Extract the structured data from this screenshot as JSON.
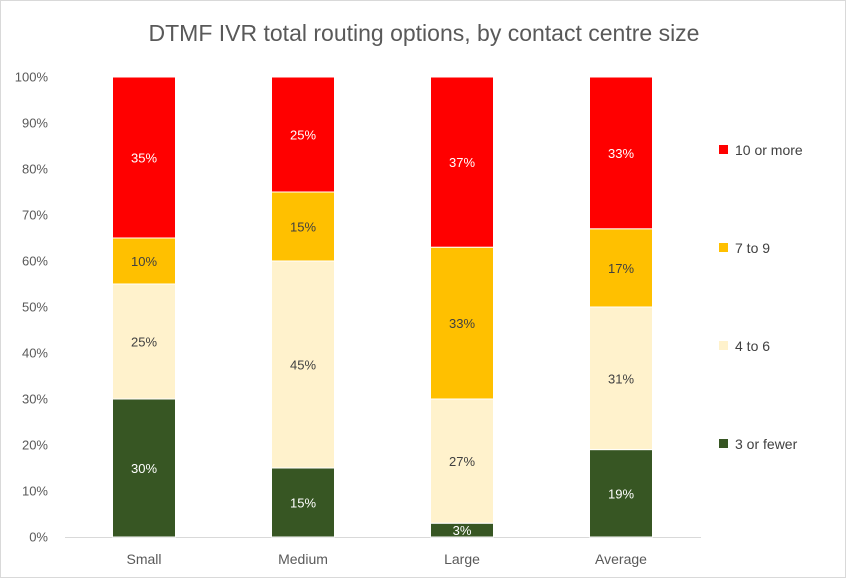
{
  "chart_data": {
    "type": "bar",
    "stacked": true,
    "title": "DTMF IVR total routing options, by contact centre size",
    "xlabel": "",
    "ylabel": "",
    "ylim": [
      0,
      100
    ],
    "y_ticks": [
      "0%",
      "10%",
      "20%",
      "30%",
      "40%",
      "50%",
      "60%",
      "70%",
      "80%",
      "90%",
      "100%"
    ],
    "categories": [
      "Small",
      "Medium",
      "Large",
      "Average"
    ],
    "series": [
      {
        "name": "3 or fewer",
        "color": "#375623",
        "label_color": "#ffffff",
        "values": [
          30,
          15,
          3,
          19
        ],
        "labels": [
          "30%",
          "15%",
          "3%",
          "19%"
        ]
      },
      {
        "name": "4 to 6",
        "color": "#fff2cc",
        "label_color": "#404040",
        "values": [
          25,
          45,
          27,
          31
        ],
        "labels": [
          "25%",
          "45%",
          "27%",
          "31%"
        ]
      },
      {
        "name": "7 to 9",
        "color": "#ffc000",
        "label_color": "#404040",
        "values": [
          10,
          15,
          33,
          17
        ],
        "labels": [
          "10%",
          "15%",
          "33%",
          "17%"
        ]
      },
      {
        "name": "10 or more",
        "color": "#ff0000",
        "label_color": "#ffffff",
        "values": [
          35,
          25,
          37,
          33
        ],
        "labels": [
          "35%",
          "25%",
          "37%",
          "33%"
        ]
      }
    ],
    "legend_position": "right",
    "gridlines": false
  }
}
